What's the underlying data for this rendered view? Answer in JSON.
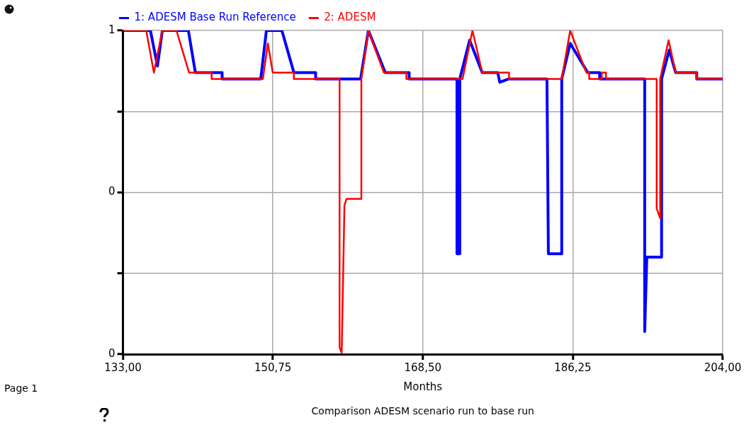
{
  "chart_data": {
    "type": "line",
    "xlabel": "Months",
    "annotations": [
      "Page 1",
      "Comparison ADESM scenario run to base run"
    ],
    "xlim": [
      133,
      204
    ],
    "xticks": [
      {
        "value": 133,
        "label": "133,00"
      },
      {
        "value": 150.75,
        "label": "150,75"
      },
      {
        "value": 168.5,
        "label": "168,50"
      },
      {
        "value": 186.25,
        "label": "186,25"
      },
      {
        "value": 204,
        "label": "204,00"
      }
    ],
    "ylim": [
      0,
      1
    ],
    "yticks": [
      {
        "value": 0,
        "label": "0"
      },
      {
        "value": 0.25,
        "label": null
      },
      {
        "value": 0.5,
        "label": "0"
      },
      {
        "value": 0.75,
        "label": null
      },
      {
        "value": 1,
        "label": "1"
      }
    ],
    "grid": true,
    "legend": "top left",
    "marker": "none",
    "line_style": "solid",
    "series": [
      {
        "name": "1: ADESM Base Run Reference",
        "color": "#0000ff",
        "x": [
          133,
          136.25,
          137.08,
          137.66,
          140.74,
          141.57,
          144.74,
          144.74,
          149.31,
          149.98,
          151.81,
          153.23,
          155.81,
          155.81,
          161.13,
          162.05,
          164.05,
          166.88,
          166.88,
          172.54,
          172.54,
          172.87,
          172.87,
          174.04,
          175.53,
          177.36,
          177.61,
          178.61,
          183.19,
          183.36,
          184.94,
          184.94,
          185.94,
          188.02,
          189.43,
          189.43,
          194.76,
          194.76,
          195.01,
          196.76,
          196.76,
          197.67,
          198.42,
          200.92,
          200.92,
          204
        ],
        "values": [
          1,
          1,
          0.89,
          1,
          1,
          0.87,
          0.87,
          0.85,
          0.85,
          1,
          1,
          0.87,
          0.87,
          0.85,
          0.85,
          1,
          0.87,
          0.87,
          0.85,
          0.85,
          0.31,
          0.31,
          0.85,
          0.97,
          0.87,
          0.87,
          0.84,
          0.85,
          0.85,
          0.31,
          0.31,
          0.85,
          0.96,
          0.87,
          0.87,
          0.85,
          0.85,
          0.07,
          0.3,
          0.3,
          0.85,
          0.94,
          0.87,
          0.87,
          0.85,
          0.85
        ]
      },
      {
        "name": "2: ADESM",
        "color": "#ff0000",
        "x": [
          133,
          135.75,
          136.66,
          137.66,
          139.33,
          140.82,
          143.49,
          143.49,
          149.56,
          150.15,
          150.73,
          153.23,
          153.23,
          158.64,
          158.64,
          158.89,
          159.22,
          159.47,
          161.22,
          161.22,
          162.05,
          163.88,
          166.55,
          166.55,
          173.2,
          174.37,
          175.53,
          178.7,
          178.7,
          184.94,
          185.94,
          187.85,
          188.19,
          188.19,
          189.68,
          189.68,
          190.18,
          190.18,
          196.18,
          196.18,
          196.59,
          196.59,
          197.59,
          198.42,
          200.92,
          200.92,
          204
        ],
        "values": [
          1,
          1,
          0.87,
          1,
          1,
          0.87,
          0.87,
          0.85,
          0.85,
          0.96,
          0.87,
          0.87,
          0.85,
          0.85,
          0.02,
          0.005,
          0.46,
          0.48,
          0.48,
          0.85,
          1,
          0.87,
          0.87,
          0.85,
          0.85,
          1,
          0.87,
          0.87,
          0.85,
          0.85,
          1,
          0.87,
          0.87,
          0.85,
          0.85,
          0.87,
          0.87,
          0.85,
          0.85,
          0.45,
          0.42,
          0.85,
          0.97,
          0.87,
          0.87,
          0.85,
          0.85
        ]
      }
    ]
  }
}
